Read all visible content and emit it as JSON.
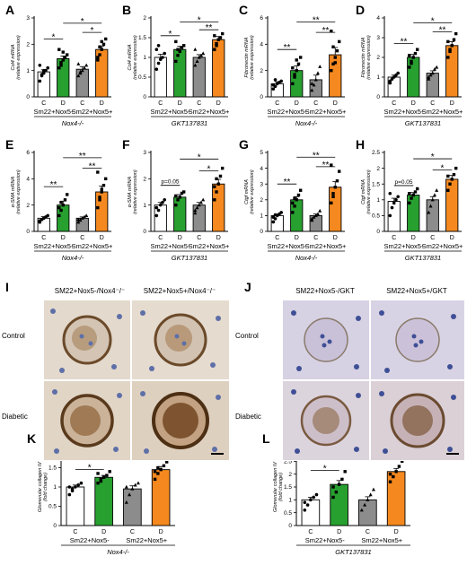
{
  "chart_data": [
    {
      "panel": "A",
      "type": "bar",
      "ylabel": "Col4 mRNA",
      "ylabel2": "(relative expression)",
      "yticks": [
        0,
        1,
        2,
        3
      ],
      "ylim": [
        0,
        3
      ],
      "categories": [
        "C",
        "D",
        "C",
        "D"
      ],
      "groups": [
        "Sm22+Nox5-",
        "Sm22+Nox5+"
      ],
      "strain": "Nox4-/-",
      "values": [
        0.95,
        1.45,
        1.05,
        1.8
      ],
      "errors": [
        0.08,
        0.1,
        0.1,
        0.12
      ],
      "points": [
        [
          0.6,
          0.8,
          0.9,
          1.0,
          1.1,
          1.2,
          0.85,
          1.0
        ],
        [
          1.1,
          1.3,
          1.4,
          1.5,
          1.6,
          1.8,
          1.2,
          1.7
        ],
        [
          0.8,
          0.9,
          1.0,
          1.1,
          1.2,
          1.25,
          0.95
        ],
        [
          1.4,
          1.6,
          1.8,
          2.0,
          2.2,
          1.5,
          1.9,
          2.1
        ]
      ],
      "colors": [
        "#ffffff",
        "#27a02f",
        "#8c8c8c",
        "#f5891f"
      ],
      "sig": [
        {
          "from": 0,
          "to": 1,
          "label": "*",
          "level": 2.2
        },
        {
          "from": 2,
          "to": 3,
          "label": "*",
          "level": 2.45
        },
        {
          "from": 1,
          "to": 3,
          "label": "*",
          "level": 2.8
        }
      ]
    },
    {
      "panel": "B",
      "type": "bar",
      "ylabel": "Col4 mRNA",
      "ylabel2": "(relative expression)",
      "yticks": [
        0.0,
        0.5,
        1.0,
        1.5,
        2.0
      ],
      "ylim": [
        0,
        2.0
      ],
      "categories": [
        "C",
        "D",
        "C",
        "D"
      ],
      "groups": [
        "Sm22+Nox5-",
        "Sm22+Nox5+"
      ],
      "strain": "GKT137831",
      "values": [
        1.0,
        1.2,
        1.0,
        1.45
      ],
      "errors": [
        0.08,
        0.08,
        0.07,
        0.08
      ],
      "points": [
        [
          0.7,
          0.85,
          0.95,
          1.0,
          1.1,
          1.2,
          1.3
        ],
        [
          0.9,
          1.05,
          1.15,
          1.25,
          1.3,
          1.4,
          1.2
        ],
        [
          0.8,
          0.9,
          1.0,
          1.05,
          1.1,
          1.2
        ],
        [
          1.2,
          1.35,
          1.45,
          1.5,
          1.6,
          1.55,
          1.3
        ]
      ],
      "colors": [
        "#ffffff",
        "#27a02f",
        "#8c8c8c",
        "#f5891f"
      ],
      "sig": [
        {
          "from": 0,
          "to": 1,
          "label": "*",
          "level": 1.55
        },
        {
          "from": 2,
          "to": 3,
          "label": "**",
          "level": 1.7
        },
        {
          "from": 1,
          "to": 3,
          "label": "*",
          "level": 1.9
        }
      ]
    },
    {
      "panel": "C",
      "type": "bar",
      "ylabel": "Fibronectin mRNA",
      "ylabel2": "(relative expression)",
      "yticks": [
        0,
        2,
        4,
        6
      ],
      "ylim": [
        0,
        6
      ],
      "categories": [
        "C",
        "D",
        "C",
        "D"
      ],
      "groups": [
        "Sm22+Nox5-",
        "Sm22+Nox5+"
      ],
      "strain": "Nox4-/-",
      "values": [
        1.0,
        2.0,
        1.3,
        3.2
      ],
      "errors": [
        0.15,
        0.35,
        0.35,
        0.55
      ],
      "points": [
        [
          0.6,
          0.8,
          1.0,
          1.1,
          1.2,
          0.9,
          1.3
        ],
        [
          1.0,
          1.5,
          2.0,
          2.5,
          3.0,
          2.2,
          1.7,
          2.8
        ],
        [
          0.5,
          0.9,
          1.3,
          1.8,
          2.3,
          1.0
        ],
        [
          2.0,
          2.5,
          3.0,
          3.5,
          4.2,
          5.0,
          3.8,
          2.6
        ]
      ],
      "colors": [
        "#ffffff",
        "#27a02f",
        "#8c8c8c",
        "#f5891f"
      ],
      "sig": [
        {
          "from": 0,
          "to": 1,
          "label": "**",
          "level": 3.6
        },
        {
          "from": 2,
          "to": 3,
          "label": "**",
          "level": 4.9
        },
        {
          "from": 1,
          "to": 3,
          "label": "**",
          "level": 5.7
        }
      ]
    },
    {
      "panel": "D",
      "type": "bar",
      "ylabel": "Fibronectin mRNA",
      "ylabel2": "(relative expression)",
      "yticks": [
        0,
        1,
        2,
        3,
        4
      ],
      "ylim": [
        0,
        4
      ],
      "categories": [
        "C",
        "D",
        "C",
        "D"
      ],
      "groups": [
        "Sm22+Nox5-",
        "Sm22+Nox5+"
      ],
      "strain": "GKT137831",
      "values": [
        1.0,
        2.0,
        1.2,
        2.6
      ],
      "errors": [
        0.1,
        0.15,
        0.12,
        0.2
      ],
      "points": [
        [
          0.7,
          0.9,
          1.0,
          1.1,
          1.2,
          0.8
        ],
        [
          1.5,
          1.8,
          2.0,
          2.2,
          2.4,
          2.1,
          1.7
        ],
        [
          0.9,
          1.1,
          1.2,
          1.4,
          1.5,
          1.0
        ],
        [
          2.0,
          2.4,
          2.6,
          2.9,
          3.2,
          2.8,
          2.3
        ]
      ],
      "colors": [
        "#ffffff",
        "#27a02f",
        "#8c8c8c",
        "#f5891f"
      ],
      "sig": [
        {
          "from": 0,
          "to": 1,
          "label": "**",
          "level": 2.7
        },
        {
          "from": 2,
          "to": 3,
          "label": "**",
          "level": 3.3
        },
        {
          "from": 1,
          "to": 3,
          "label": "*",
          "level": 3.75
        }
      ]
    },
    {
      "panel": "E",
      "type": "bar",
      "ylabel": "α-SMA mRNA",
      "ylabel2": "(relative expression)",
      "yticks": [
        0,
        2,
        4,
        6
      ],
      "ylim": [
        0,
        6
      ],
      "categories": [
        "C",
        "D",
        "C",
        "D"
      ],
      "groups": [
        "Sm22+Nox5-",
        "Sm22+Nox5+"
      ],
      "strain": "Nox4-/-",
      "values": [
        1.0,
        2.0,
        1.0,
        3.0
      ],
      "errors": [
        0.12,
        0.3,
        0.1,
        0.45
      ],
      "points": [
        [
          0.7,
          0.9,
          1.0,
          1.1,
          1.2,
          0.8
        ],
        [
          1.2,
          1.6,
          2.0,
          2.4,
          2.8,
          1.8,
          2.2
        ],
        [
          0.7,
          0.85,
          1.0,
          1.1,
          1.2,
          0.9
        ],
        [
          1.8,
          2.4,
          3.0,
          3.5,
          4.0,
          4.5,
          2.6,
          3.2
        ]
      ],
      "colors": [
        "#ffffff",
        "#27a02f",
        "#8c8c8c",
        "#f5891f"
      ],
      "sig": [
        {
          "from": 0,
          "to": 1,
          "label": "**",
          "level": 3.4
        },
        {
          "from": 2,
          "to": 3,
          "label": "**",
          "level": 4.8
        },
        {
          "from": 1,
          "to": 3,
          "label": "**",
          "level": 5.6
        }
      ]
    },
    {
      "panel": "F",
      "type": "bar",
      "ylabel": "α-SMA mRNA",
      "ylabel2": "(relative expression)",
      "yticks": [
        0,
        1,
        2,
        3
      ],
      "ylim": [
        0,
        3
      ],
      "categories": [
        "C",
        "D",
        "C",
        "D"
      ],
      "groups": [
        "Sm22+Nox5-",
        "Sm22+Nox5+"
      ],
      "strain": "GKT137831",
      "values": [
        1.0,
        1.3,
        1.0,
        1.8
      ],
      "errors": [
        0.1,
        0.1,
        0.1,
        0.18
      ],
      "points": [
        [
          0.6,
          0.8,
          1.0,
          1.1,
          1.2,
          0.9
        ],
        [
          1.0,
          1.2,
          1.3,
          1.45,
          1.5,
          1.35
        ],
        [
          0.7,
          0.9,
          1.0,
          1.1,
          1.2,
          0.8
        ],
        [
          1.2,
          1.5,
          1.8,
          2.1,
          2.4,
          1.7,
          2.0
        ]
      ],
      "colors": [
        "#ffffff",
        "#27a02f",
        "#8c8c8c",
        "#f5891f"
      ],
      "sig": [
        {
          "from": 0,
          "to": 1,
          "label": "p=0.05",
          "level": 1.75
        },
        {
          "from": 2,
          "to": 3,
          "label": "*",
          "level": 2.3
        },
        {
          "from": 1,
          "to": 3,
          "label": "*",
          "level": 2.75
        }
      ]
    },
    {
      "panel": "G",
      "type": "bar",
      "ylabel": "Ctgf mRNA",
      "ylabel2": "(relative expression)",
      "yticks": [
        0,
        1,
        2,
        3,
        4,
        5
      ],
      "ylim": [
        0,
        5
      ],
      "categories": [
        "C",
        "D",
        "C",
        "D"
      ],
      "groups": [
        "Sm22+Nox5-",
        "Sm22+Nox5+"
      ],
      "strain": "Nox4-/-",
      "values": [
        1.0,
        2.0,
        1.0,
        2.8
      ],
      "errors": [
        0.1,
        0.2,
        0.1,
        0.35
      ],
      "points": [
        [
          0.6,
          0.8,
          1.0,
          1.1,
          1.2,
          0.9,
          1.05
        ],
        [
          1.2,
          1.6,
          2.0,
          2.3,
          2.6,
          1.8,
          2.1
        ],
        [
          0.7,
          0.9,
          1.0,
          1.1,
          1.3,
          0.8
        ],
        [
          1.8,
          2.4,
          2.8,
          3.2,
          3.8,
          4.2,
          2.2
        ]
      ],
      "colors": [
        "#ffffff",
        "#27a02f",
        "#8c8c8c",
        "#f5891f"
      ],
      "sig": [
        {
          "from": 0,
          "to": 1,
          "label": "**",
          "level": 3.0
        },
        {
          "from": 2,
          "to": 3,
          "label": "**",
          "level": 4.1
        },
        {
          "from": 1,
          "to": 3,
          "label": "**",
          "level": 4.7
        }
      ]
    },
    {
      "panel": "H",
      "type": "bar",
      "ylabel": "Ctgf mRNA",
      "ylabel2": "(relative expression)",
      "yticks": [
        0.0,
        0.5,
        1.0,
        1.5,
        2.0,
        2.5
      ],
      "ylim": [
        0,
        2.5
      ],
      "categories": [
        "C",
        "D",
        "C",
        "D"
      ],
      "groups": [
        "Sm22+Nox5-",
        "Sm22+Nox5+"
      ],
      "strain": "GKT137831",
      "values": [
        0.95,
        1.15,
        1.0,
        1.65
      ],
      "errors": [
        0.1,
        0.08,
        0.1,
        0.12
      ],
      "points": [
        [
          0.5,
          0.75,
          0.9,
          1.0,
          1.1,
          1.2
        ],
        [
          0.9,
          1.05,
          1.15,
          1.25,
          1.35,
          1.2
        ],
        [
          0.6,
          0.8,
          1.0,
          1.15,
          1.3
        ],
        [
          1.3,
          1.5,
          1.65,
          1.8,
          2.0,
          1.75
        ]
      ],
      "colors": [
        "#ffffff",
        "#27a02f",
        "#8c8c8c",
        "#f5891f"
      ],
      "sig": [
        {
          "from": 0,
          "to": 1,
          "label": "p=0.05",
          "level": 1.45
        },
        {
          "from": 2,
          "to": 3,
          "label": "*",
          "level": 1.95
        },
        {
          "from": 1,
          "to": 3,
          "label": "*",
          "level": 2.3
        }
      ]
    },
    {
      "panel": "K",
      "type": "bar",
      "ylabel": "Glomerular collagen IV",
      "ylabel2": "(fold change)",
      "yticks": [
        0.0,
        0.5,
        1.0,
        1.5,
        2.0
      ],
      "ylim": [
        0,
        2.0
      ],
      "categories": [
        "C",
        "D",
        "C",
        "D"
      ],
      "groups": [
        "Sm22+Nox5-",
        "Sm22+Nox5+"
      ],
      "strain": "Nox4-/-",
      "values": [
        1.0,
        1.25,
        0.95,
        1.45
      ],
      "errors": [
        0.05,
        0.05,
        0.08,
        0.08
      ],
      "points": [
        [
          0.8,
          0.9,
          1.0,
          1.05,
          1.1,
          1.0,
          0.95
        ],
        [
          1.1,
          1.2,
          1.25,
          1.3,
          1.4,
          1.35,
          1.15
        ],
        [
          0.6,
          0.8,
          0.95,
          1.05,
          1.1,
          1.0
        ],
        [
          1.2,
          1.35,
          1.45,
          1.55,
          1.65,
          1.4,
          1.5
        ]
      ],
      "colors": [
        "#ffffff",
        "#27a02f",
        "#8c8c8c",
        "#f5891f"
      ],
      "sig": [
        {
          "from": 0,
          "to": 1,
          "label": "*",
          "level": 1.45
        },
        {
          "from": 2,
          "to": 3,
          "label": "*",
          "level": 1.7
        },
        {
          "from": 1,
          "to": 3,
          "label": "*",
          "level": 1.95
        }
      ]
    },
    {
      "panel": "L",
      "type": "bar",
      "ylabel": "Glomerular collagen IV",
      "ylabel2": "(fold change)",
      "yticks": [
        0.0,
        0.5,
        1.0,
        1.5,
        2.0,
        2.5,
        3.0
      ],
      "ylim": [
        0,
        3.0
      ],
      "categories": [
        "C",
        "D",
        "C",
        "D"
      ],
      "groups": [
        "Sm22+Nox5-",
        "Sm22+Nox5+"
      ],
      "strain": "GKT137831",
      "values": [
        1.0,
        1.6,
        1.0,
        2.1
      ],
      "errors": [
        0.1,
        0.15,
        0.12,
        0.12
      ],
      "points": [
        [
          0.6,
          0.8,
          1.0,
          1.1,
          1.2,
          0.9
        ],
        [
          1.1,
          1.3,
          1.6,
          1.8,
          2.1,
          1.5
        ],
        [
          0.6,
          0.8,
          1.0,
          1.2,
          1.4
        ],
        [
          1.7,
          1.9,
          2.1,
          2.3,
          2.5,
          2.0
        ]
      ],
      "colors": [
        "#ffffff",
        "#27a02f",
        "#8c8c8c",
        "#f5891f"
      ],
      "sig": [
        {
          "from": 0,
          "to": 1,
          "label": "*",
          "level": 2.15
        },
        {
          "from": 2,
          "to": 3,
          "label": "*",
          "level": 2.55
        },
        {
          "from": 1,
          "to": 3,
          "label": "*",
          "level": 2.9
        }
      ]
    }
  ],
  "images": {
    "I": {
      "label": "I",
      "col_titles": [
        "SM22+Nox5-/Nox4⁻/⁻",
        "SM22+Nox5+/Nox4⁻/⁻"
      ],
      "row_titles": [
        "Control",
        "Diabetic"
      ]
    },
    "J": {
      "label": "J",
      "col_titles": [
        "SM22+Nox5-/GKT",
        "SM22+Nox5+/GKT"
      ],
      "row_titles": [
        "Control",
        "Diabetic"
      ]
    }
  }
}
